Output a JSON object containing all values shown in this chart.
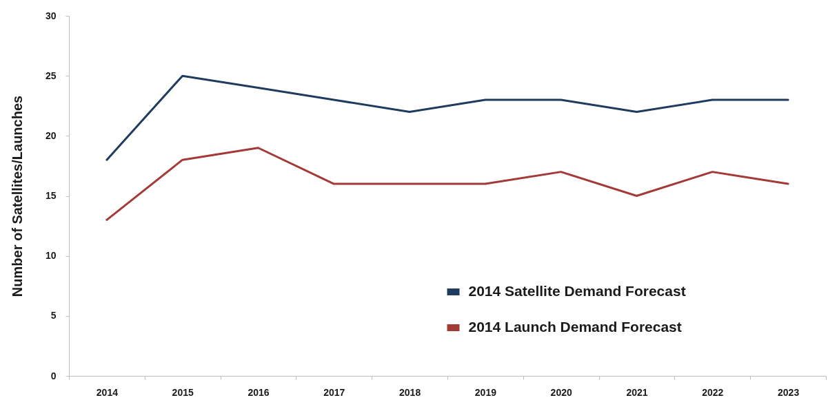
{
  "chart_data": {
    "type": "line",
    "ylabel": "Number of Satellites/Launches",
    "categories": [
      "2014",
      "2015",
      "2016",
      "2017",
      "2018",
      "2019",
      "2020",
      "2021",
      "2022",
      "2023"
    ],
    "series": [
      {
        "name": "2014 Satellite Demand Forecast",
        "color": "#1f3b5e",
        "values": [
          18,
          25,
          24,
          23,
          22,
          23,
          23,
          22,
          23,
          23
        ]
      },
      {
        "name": "2014 Launch Demand Forecast",
        "color": "#a33a37",
        "values": [
          13,
          18,
          19,
          16,
          16,
          16,
          17,
          15,
          17,
          16
        ]
      }
    ],
    "ylim": [
      0,
      30
    ],
    "yticks": [
      0,
      5,
      10,
      15,
      20,
      25,
      30
    ],
    "legend": "bottom right",
    "line_style": "solid"
  }
}
